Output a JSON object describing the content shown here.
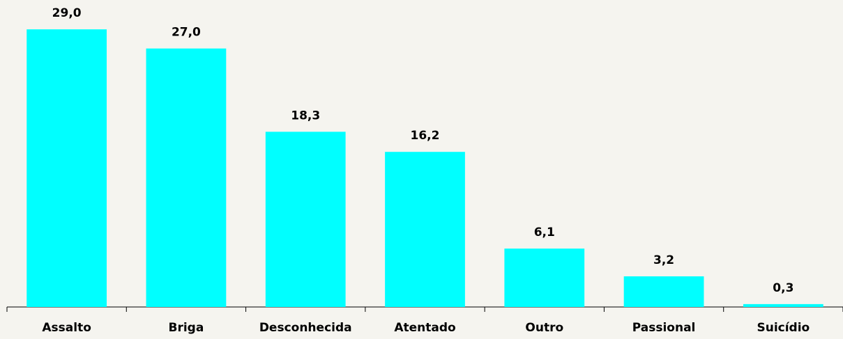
{
  "chart_data": {
    "type": "bar",
    "categories": [
      "Assalto",
      "Briga",
      "Desconhecida",
      "Atentado",
      "Outro",
      "Passional",
      "Suicídio"
    ],
    "values": [
      29.0,
      27.0,
      18.3,
      16.2,
      6.1,
      3.2,
      0.3
    ],
    "value_labels": [
      "29,0",
      "27,0",
      "18,3",
      "16,2",
      "6,1",
      "3,2",
      "0,3"
    ],
    "color": "#00ffff",
    "ylim": [
      0,
      30
    ]
  }
}
